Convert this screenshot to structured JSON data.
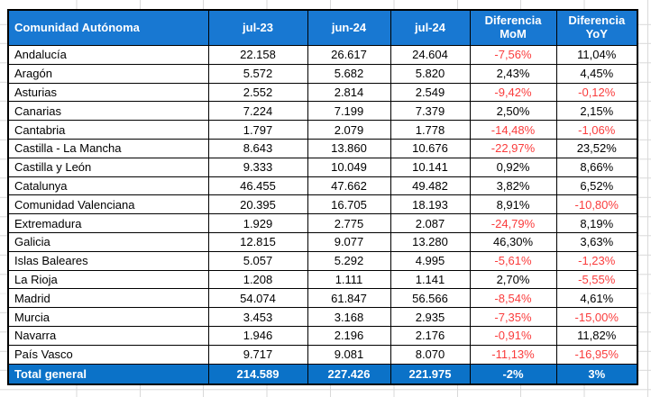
{
  "colors": {
    "header_bg": "#1878D2",
    "total_bg": "#0B72C8",
    "negative_text": "#FA3C3C",
    "positive_text": "#000000",
    "border": "#000000",
    "gridline": "#D9D9D9"
  },
  "table": {
    "columns": [
      {
        "id": "comunidad-autonoma",
        "label": "Comunidad Autónoma"
      },
      {
        "id": "jul-23",
        "label": "jul-23"
      },
      {
        "id": "jun-24",
        "label": "jun-24"
      },
      {
        "id": "jul-24",
        "label": "jul-24"
      },
      {
        "id": "diferencia-mom",
        "label": "Diferencia\nMoM"
      },
      {
        "id": "diferencia-yoy",
        "label": "Diferencia\nYoY"
      }
    ],
    "rows": [
      {
        "region": "Andalucía",
        "cells": [
          "22.158",
          "26.617",
          "24.604",
          "-7,56%",
          "11,04%"
        ]
      },
      {
        "region": "Aragón",
        "cells": [
          "5.572",
          "5.682",
          "5.820",
          "2,43%",
          "4,45%"
        ]
      },
      {
        "region": "Asturias",
        "cells": [
          "2.552",
          "2.814",
          "2.549",
          "-9,42%",
          "-0,12%"
        ]
      },
      {
        "region": "Canarias",
        "cells": [
          "7.224",
          "7.199",
          "7.379",
          "2,50%",
          "2,15%"
        ]
      },
      {
        "region": "Cantabria",
        "cells": [
          "1.797",
          "2.079",
          "1.778",
          "-14,48%",
          "-1,06%"
        ]
      },
      {
        "region": "Castilla - La Mancha",
        "cells": [
          "8.643",
          "13.860",
          "10.676",
          "-22,97%",
          "23,52%"
        ]
      },
      {
        "region": "Castilla y León",
        "cells": [
          "9.333",
          "10.049",
          "10.141",
          "0,92%",
          "8,66%"
        ]
      },
      {
        "region": "Catalunya",
        "cells": [
          "46.455",
          "47.662",
          "49.482",
          "3,82%",
          "6,52%"
        ]
      },
      {
        "region": "Comunidad Valenciana",
        "cells": [
          "20.395",
          "16.705",
          "18.193",
          "8,91%",
          "-10,80%"
        ]
      },
      {
        "region": "Extremadura",
        "cells": [
          "1.929",
          "2.775",
          "2.087",
          "-24,79%",
          "8,19%"
        ]
      },
      {
        "region": "Galicia",
        "cells": [
          "12.815",
          "9.077",
          "13.280",
          "46,30%",
          "3,63%"
        ]
      },
      {
        "region": "Islas Baleares",
        "cells": [
          "5.057",
          "5.292",
          "4.995",
          "-5,61%",
          "-1,23%"
        ]
      },
      {
        "region": "La Rioja",
        "cells": [
          "1.208",
          "1.111",
          "1.141",
          "2,70%",
          "-5,55%"
        ]
      },
      {
        "region": "Madrid",
        "cells": [
          "54.074",
          "61.847",
          "56.566",
          "-8,54%",
          "4,61%"
        ]
      },
      {
        "region": "Murcia",
        "cells": [
          "3.453",
          "3.168",
          "2.935",
          "-7,35%",
          "-15,00%"
        ]
      },
      {
        "region": "Navarra",
        "cells": [
          "1.946",
          "2.196",
          "2.176",
          "-0,91%",
          "11,82%"
        ]
      },
      {
        "region": "País Vasco",
        "cells": [
          "9.717",
          "9.081",
          "8.070",
          "-11,13%",
          "-16,95%"
        ]
      }
    ],
    "total": {
      "region": "Total general",
      "cells": [
        "214.589",
        "227.426",
        "221.975",
        "-2%",
        "3%"
      ]
    }
  }
}
